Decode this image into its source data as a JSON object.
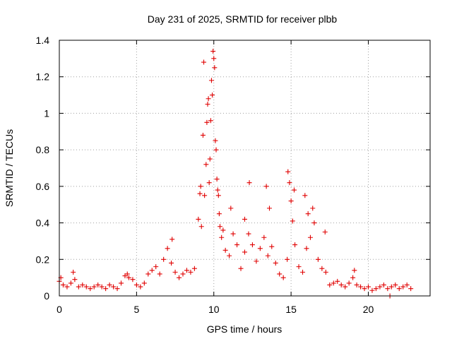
{
  "chart_data": {
    "type": "scatter",
    "title": "Day 231 of 2025, SRMTID for receiver plbb",
    "xlabel": "GPS time / hours",
    "ylabel": "SRMTID / TECUs",
    "xlim": [
      0,
      24
    ],
    "ylim": [
      0,
      1.4
    ],
    "xticks": [
      "0",
      "5",
      "10",
      "15",
      "20"
    ],
    "yticks": [
      "0",
      "0.2",
      "0.4",
      "0.6",
      "0.8",
      "1",
      "1.2",
      "1.4"
    ],
    "grid": true,
    "marker": "+",
    "color": "#e00000",
    "series": [
      {
        "name": "SRMTID",
        "x": [
          0.0,
          0.25,
          0.5,
          0.75,
          1.0,
          1.25,
          1.5,
          1.75,
          2.0,
          2.25,
          2.5,
          2.75,
          3.0,
          3.25,
          3.5,
          3.75,
          4.0,
          4.25,
          4.5,
          4.75,
          5.0,
          5.25,
          5.5,
          5.75,
          6.0,
          6.25,
          6.5,
          6.75,
          7.0,
          7.25,
          7.5,
          7.75,
          8.0,
          8.25,
          8.5,
          8.75,
          9.0,
          9.1,
          9.2,
          9.3,
          9.4,
          9.5,
          9.6,
          9.7,
          9.8,
          9.9,
          10.0,
          10.1,
          10.2,
          10.3,
          10.4,
          10.5,
          10.6,
          10.75,
          11.0,
          11.25,
          11.5,
          11.75,
          12.0,
          12.25,
          12.5,
          12.75,
          13.0,
          13.25,
          13.5,
          13.75,
          14.0,
          14.25,
          14.5,
          14.75,
          14.9,
          15.0,
          15.1,
          15.25,
          15.5,
          15.75,
          16.0,
          16.25,
          16.5,
          16.75,
          17.0,
          17.25,
          17.5,
          17.75,
          18.0,
          18.25,
          18.5,
          18.75,
          19.0,
          19.25,
          19.5,
          19.75,
          20.0,
          20.25,
          20.5,
          20.75,
          21.0,
          21.25,
          21.5,
          21.75,
          22.0,
          22.25,
          22.5,
          22.75,
          0.1,
          0.9,
          4.4,
          7.3,
          9.15,
          9.35,
          9.55,
          9.65,
          9.75,
          9.85,
          9.95,
          10.05,
          10.15,
          10.25,
          10.35,
          11.1,
          12.3,
          12.0,
          13.4,
          13.6,
          14.8,
          15.2,
          15.9,
          16.1,
          16.4,
          17.2,
          19.1,
          21.4
        ],
        "y": [
          0.08,
          0.06,
          0.05,
          0.07,
          0.09,
          0.05,
          0.06,
          0.05,
          0.04,
          0.05,
          0.06,
          0.05,
          0.04,
          0.06,
          0.05,
          0.04,
          0.07,
          0.11,
          0.1,
          0.09,
          0.06,
          0.05,
          0.07,
          0.12,
          0.14,
          0.16,
          0.12,
          0.2,
          0.26,
          0.18,
          0.13,
          0.1,
          0.12,
          0.14,
          0.13,
          0.15,
          0.42,
          0.56,
          0.38,
          0.88,
          0.55,
          0.72,
          1.05,
          0.62,
          0.96,
          1.1,
          1.3,
          0.85,
          0.64,
          0.55,
          0.38,
          0.32,
          0.36,
          0.25,
          0.22,
          0.34,
          0.28,
          0.15,
          0.24,
          0.34,
          0.28,
          0.19,
          0.26,
          0.32,
          0.22,
          0.27,
          0.18,
          0.12,
          0.1,
          0.2,
          0.62,
          0.52,
          0.41,
          0.28,
          0.16,
          0.13,
          0.26,
          0.32,
          0.4,
          0.2,
          0.15,
          0.13,
          0.06,
          0.07,
          0.08,
          0.06,
          0.05,
          0.07,
          0.1,
          0.06,
          0.05,
          0.04,
          0.05,
          0.03,
          0.04,
          0.05,
          0.06,
          0.04,
          0.05,
          0.06,
          0.04,
          0.05,
          0.06,
          0.04,
          0.1,
          0.13,
          0.12,
          0.31,
          0.6,
          1.28,
          0.95,
          1.08,
          0.75,
          1.18,
          1.34,
          1.25,
          0.8,
          0.58,
          0.45,
          0.48,
          0.62,
          0.42,
          0.6,
          0.48,
          0.68,
          0.58,
          0.55,
          0.45,
          0.48,
          0.35,
          0.14,
          0.0
        ]
      }
    ]
  }
}
